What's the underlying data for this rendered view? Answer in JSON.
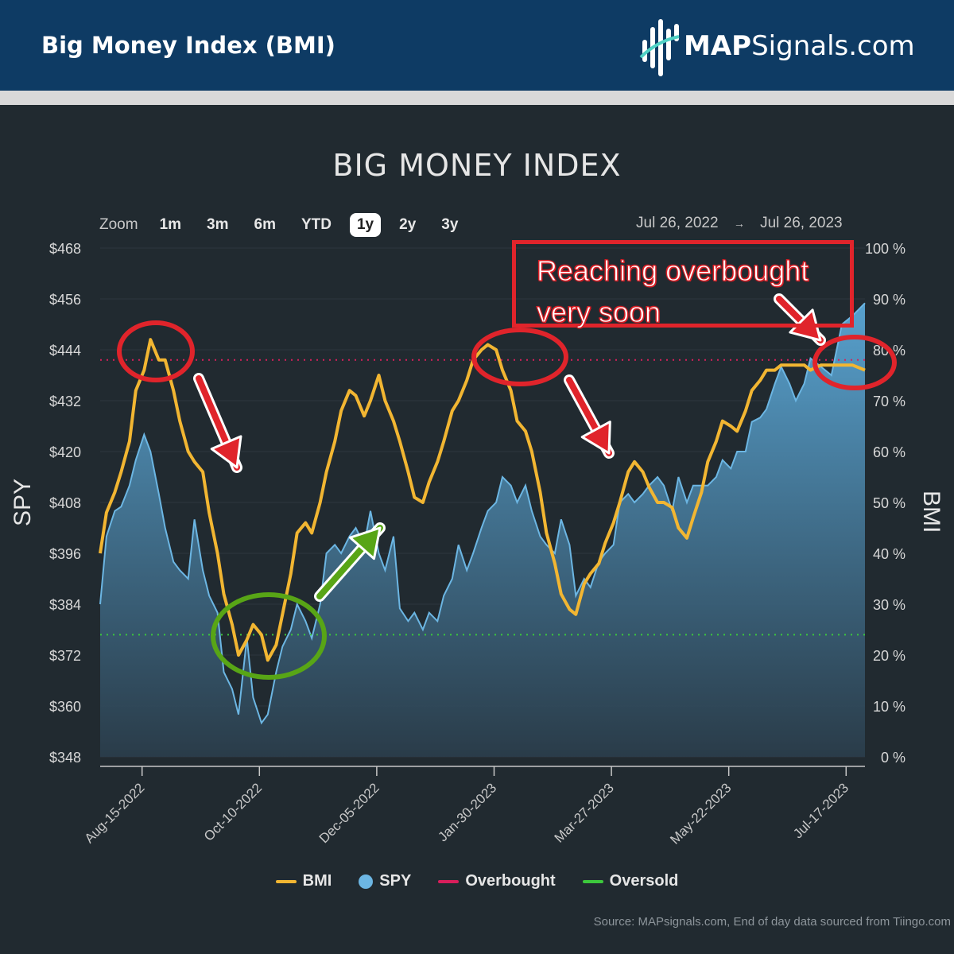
{
  "header": {
    "title": "Big Money Index (BMI)",
    "logo_bold": "MAP",
    "logo_rest": "Signals.com"
  },
  "chart_title": "BIG MONEY INDEX",
  "zoom": {
    "label": "Zoom",
    "buttons": [
      "1m",
      "3m",
      "6m",
      "YTD",
      "1y",
      "2y",
      "3y"
    ],
    "active": "1y"
  },
  "range": {
    "from": "Jul 26, 2022",
    "arrow": "→",
    "to": "Jul 26, 2023"
  },
  "annotation": {
    "line1": "Reaching overbought",
    "line2": "very soon"
  },
  "legend": {
    "bmi": "BMI",
    "spy": "SPY",
    "overbought": "Overbought",
    "oversold": "Oversold"
  },
  "source": "Source: MAPsignals.com, End of day data sourced from Tiingo.com",
  "colors": {
    "bmi": "#f2b632",
    "spy": "#6cb6e3",
    "overbought": "#d81e5b",
    "oversold": "#3cc83c",
    "annotation": "#e0242b",
    "green_arrow": "#58a516"
  },
  "chart_data": {
    "type": "line",
    "x_range": [
      "2022-07-26",
      "2023-07-26"
    ],
    "x_ticks": [
      "Aug-15-2022",
      "Oct-10-2022",
      "Dec-05-2022",
      "Jan-30-2023",
      "Mar-27-2023",
      "May-22-2023",
      "Jul-17-2023"
    ],
    "y_left": {
      "label": "SPY",
      "ticks": [
        "$468",
        "$456",
        "$444",
        "$432",
        "$420",
        "$408",
        "$396",
        "$384",
        "$372",
        "$360",
        "$348"
      ],
      "range": [
        348,
        468
      ]
    },
    "y_right": {
      "label": "BMI",
      "ticks": [
        "100 %",
        "90 %",
        "80 %",
        "70 %",
        "60 %",
        "50 %",
        "40 %",
        "30 %",
        "20 %",
        "10 %",
        "0 %"
      ],
      "range": [
        0,
        100
      ]
    },
    "overbought_level": 78,
    "oversold_level": 24,
    "series": [
      {
        "name": "BMI",
        "axis": "right",
        "points": [
          [
            "2022-07-26",
            40
          ],
          [
            "2022-07-29",
            48
          ],
          [
            "2022-08-02",
            52
          ],
          [
            "2022-08-05",
            56
          ],
          [
            "2022-08-09",
            62
          ],
          [
            "2022-08-12",
            72
          ],
          [
            "2022-08-16",
            76
          ],
          [
            "2022-08-19",
            82
          ],
          [
            "2022-08-23",
            78
          ],
          [
            "2022-08-26",
            78
          ],
          [
            "2022-08-30",
            72
          ],
          [
            "2022-09-02",
            66
          ],
          [
            "2022-09-06",
            60
          ],
          [
            "2022-09-09",
            58
          ],
          [
            "2022-09-13",
            56
          ],
          [
            "2022-09-16",
            48
          ],
          [
            "2022-09-20",
            40
          ],
          [
            "2022-09-23",
            32
          ],
          [
            "2022-09-27",
            26
          ],
          [
            "2022-09-30",
            20
          ],
          [
            "2022-10-04",
            23
          ],
          [
            "2022-10-07",
            26
          ],
          [
            "2022-10-11",
            24
          ],
          [
            "2022-10-14",
            19
          ],
          [
            "2022-10-18",
            22
          ],
          [
            "2022-10-21",
            28
          ],
          [
            "2022-10-25",
            36
          ],
          [
            "2022-10-28",
            44
          ],
          [
            "2022-11-01",
            46
          ],
          [
            "2022-11-04",
            44
          ],
          [
            "2022-11-08",
            50
          ],
          [
            "2022-11-11",
            56
          ],
          [
            "2022-11-15",
            62
          ],
          [
            "2022-11-18",
            68
          ],
          [
            "2022-11-22",
            72
          ],
          [
            "2022-11-25",
            71
          ],
          [
            "2022-11-29",
            67
          ],
          [
            "2022-12-02",
            70
          ],
          [
            "2022-12-06",
            75
          ],
          [
            "2022-12-09",
            70
          ],
          [
            "2022-12-13",
            66
          ],
          [
            "2022-12-16",
            62
          ],
          [
            "2022-12-20",
            56
          ],
          [
            "2022-12-23",
            51
          ],
          [
            "2022-12-27",
            50
          ],
          [
            "2022-12-30",
            54
          ],
          [
            "2023-01-03",
            58
          ],
          [
            "2023-01-06",
            62
          ],
          [
            "2023-01-10",
            68
          ],
          [
            "2023-01-13",
            70
          ],
          [
            "2023-01-17",
            74
          ],
          [
            "2023-01-20",
            78
          ],
          [
            "2023-01-24",
            80
          ],
          [
            "2023-01-27",
            81
          ],
          [
            "2023-01-31",
            80
          ],
          [
            "2023-02-03",
            76
          ],
          [
            "2023-02-07",
            72
          ],
          [
            "2023-02-10",
            66
          ],
          [
            "2023-02-14",
            64
          ],
          [
            "2023-02-17",
            60
          ],
          [
            "2023-02-21",
            52
          ],
          [
            "2023-02-24",
            44
          ],
          [
            "2023-02-28",
            38
          ],
          [
            "2023-03-03",
            32
          ],
          [
            "2023-03-07",
            29
          ],
          [
            "2023-03-10",
            28
          ],
          [
            "2023-03-14",
            34
          ],
          [
            "2023-03-17",
            36
          ],
          [
            "2023-03-21",
            38
          ],
          [
            "2023-03-24",
            42
          ],
          [
            "2023-03-28",
            46
          ],
          [
            "2023-03-31",
            50
          ],
          [
            "2023-04-04",
            56
          ],
          [
            "2023-04-07",
            58
          ],
          [
            "2023-04-11",
            56
          ],
          [
            "2023-04-14",
            53
          ],
          [
            "2023-04-18",
            50
          ],
          [
            "2023-04-21",
            50
          ],
          [
            "2023-04-25",
            49
          ],
          [
            "2023-04-28",
            45
          ],
          [
            "2023-05-02",
            43
          ],
          [
            "2023-05-05",
            47
          ],
          [
            "2023-05-09",
            52
          ],
          [
            "2023-05-12",
            58
          ],
          [
            "2023-05-16",
            62
          ],
          [
            "2023-05-19",
            66
          ],
          [
            "2023-05-23",
            65
          ],
          [
            "2023-05-26",
            64
          ],
          [
            "2023-05-30",
            68
          ],
          [
            "2023-06-02",
            72
          ],
          [
            "2023-06-06",
            74
          ],
          [
            "2023-06-09",
            76
          ],
          [
            "2023-06-13",
            76
          ],
          [
            "2023-06-16",
            77
          ],
          [
            "2023-06-20",
            77
          ],
          [
            "2023-06-23",
            77
          ],
          [
            "2023-06-27",
            77
          ],
          [
            "2023-06-30",
            76
          ],
          [
            "2023-07-05",
            77
          ],
          [
            "2023-07-10",
            77
          ],
          [
            "2023-07-15",
            77
          ],
          [
            "2023-07-20",
            77
          ],
          [
            "2023-07-26",
            76
          ]
        ]
      },
      {
        "name": "SPY",
        "axis": "left",
        "points": [
          [
            "2022-07-26",
            384
          ],
          [
            "2022-07-29",
            400
          ],
          [
            "2022-08-02",
            406
          ],
          [
            "2022-08-05",
            407
          ],
          [
            "2022-08-09",
            412
          ],
          [
            "2022-08-12",
            418
          ],
          [
            "2022-08-16",
            424
          ],
          [
            "2022-08-19",
            420
          ],
          [
            "2022-08-23",
            410
          ],
          [
            "2022-08-26",
            402
          ],
          [
            "2022-08-30",
            394
          ],
          [
            "2022-09-02",
            392
          ],
          [
            "2022-09-06",
            390
          ],
          [
            "2022-09-09",
            404
          ],
          [
            "2022-09-13",
            392
          ],
          [
            "2022-09-16",
            386
          ],
          [
            "2022-09-20",
            382
          ],
          [
            "2022-09-23",
            368
          ],
          [
            "2022-09-27",
            364
          ],
          [
            "2022-09-30",
            358
          ],
          [
            "2022-10-04",
            376
          ],
          [
            "2022-10-07",
            362
          ],
          [
            "2022-10-11",
            356
          ],
          [
            "2022-10-14",
            358
          ],
          [
            "2022-10-18",
            368
          ],
          [
            "2022-10-21",
            374
          ],
          [
            "2022-10-25",
            378
          ],
          [
            "2022-10-28",
            384
          ],
          [
            "2022-11-01",
            380
          ],
          [
            "2022-11-04",
            376
          ],
          [
            "2022-11-08",
            384
          ],
          [
            "2022-11-11",
            396
          ],
          [
            "2022-11-15",
            398
          ],
          [
            "2022-11-18",
            396
          ],
          [
            "2022-11-22",
            400
          ],
          [
            "2022-11-25",
            402
          ],
          [
            "2022-11-29",
            398
          ],
          [
            "2022-12-02",
            406
          ],
          [
            "2022-12-06",
            396
          ],
          [
            "2022-12-09",
            392
          ],
          [
            "2022-12-13",
            400
          ],
          [
            "2022-12-16",
            383
          ],
          [
            "2022-12-20",
            380
          ],
          [
            "2022-12-23",
            382
          ],
          [
            "2022-12-27",
            378
          ],
          [
            "2022-12-30",
            382
          ],
          [
            "2023-01-03",
            380
          ],
          [
            "2023-01-06",
            386
          ],
          [
            "2023-01-10",
            390
          ],
          [
            "2023-01-13",
            398
          ],
          [
            "2023-01-17",
            392
          ],
          [
            "2023-01-20",
            396
          ],
          [
            "2023-01-24",
            402
          ],
          [
            "2023-01-27",
            406
          ],
          [
            "2023-01-31",
            408
          ],
          [
            "2023-02-03",
            414
          ],
          [
            "2023-02-07",
            412
          ],
          [
            "2023-02-10",
            408
          ],
          [
            "2023-02-14",
            412
          ],
          [
            "2023-02-17",
            406
          ],
          [
            "2023-02-21",
            400
          ],
          [
            "2023-02-24",
            398
          ],
          [
            "2023-02-28",
            396
          ],
          [
            "2023-03-03",
            404
          ],
          [
            "2023-03-07",
            398
          ],
          [
            "2023-03-10",
            386
          ],
          [
            "2023-03-14",
            390
          ],
          [
            "2023-03-17",
            388
          ],
          [
            "2023-03-21",
            394
          ],
          [
            "2023-03-24",
            396
          ],
          [
            "2023-03-28",
            398
          ],
          [
            "2023-03-31",
            408
          ],
          [
            "2023-04-04",
            410
          ],
          [
            "2023-04-07",
            408
          ],
          [
            "2023-04-11",
            410
          ],
          [
            "2023-04-14",
            412
          ],
          [
            "2023-04-18",
            414
          ],
          [
            "2023-04-21",
            412
          ],
          [
            "2023-04-25",
            406
          ],
          [
            "2023-04-28",
            414
          ],
          [
            "2023-05-02",
            408
          ],
          [
            "2023-05-05",
            412
          ],
          [
            "2023-05-09",
            412
          ],
          [
            "2023-05-12",
            412
          ],
          [
            "2023-05-16",
            414
          ],
          [
            "2023-05-19",
            418
          ],
          [
            "2023-05-23",
            416
          ],
          [
            "2023-05-26",
            420
          ],
          [
            "2023-05-30",
            420
          ],
          [
            "2023-06-02",
            427
          ],
          [
            "2023-06-06",
            428
          ],
          [
            "2023-06-09",
            430
          ],
          [
            "2023-06-13",
            436
          ],
          [
            "2023-06-16",
            440
          ],
          [
            "2023-06-20",
            436
          ],
          [
            "2023-06-23",
            432
          ],
          [
            "2023-06-27",
            436
          ],
          [
            "2023-06-30",
            442
          ],
          [
            "2023-07-05",
            440
          ],
          [
            "2023-07-10",
            438
          ],
          [
            "2023-07-15",
            450
          ],
          [
            "2023-07-20",
            452
          ],
          [
            "2023-07-26",
            455
          ]
        ]
      }
    ]
  }
}
